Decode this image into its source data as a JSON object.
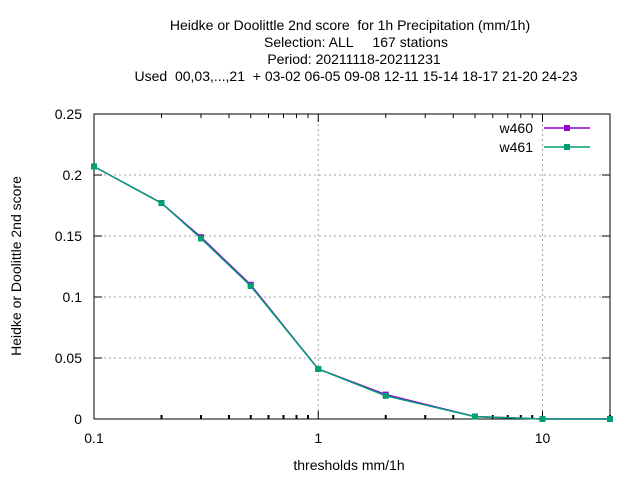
{
  "chart_data": {
    "type": "line",
    "title_lines": [
      "Heidke or Doolittle 2nd score  for 1h Precipitation (mm/1h)",
      "Selection: ALL     167 stations",
      "Period: 20211118-20211231",
      "Used  00,03,...,21  + 03-02 06-05 09-08 12-11 15-14 18-17 21-20 24-23"
    ],
    "xlabel": "thresholds mm/1h",
    "ylabel": "Heidke or Doolittle 2nd score",
    "xscale": "log",
    "xlim": [
      0.1,
      20
    ],
    "ylim": [
      0,
      0.25
    ],
    "x_ticks": [
      0.1,
      1,
      10
    ],
    "x_tick_labels": [
      "0.1",
      "1",
      "10"
    ],
    "y_ticks": [
      0,
      0.05,
      0.1,
      0.15,
      0.2,
      0.25
    ],
    "y_tick_labels": [
      "0",
      "0.05",
      "0.1",
      "0.15",
      "0.2",
      "0.25"
    ],
    "grid": true,
    "legend_position": "top-right",
    "x": [
      0.1,
      0.2,
      0.3,
      0.5,
      1,
      2,
      5,
      10,
      20
    ],
    "series": [
      {
        "name": "w460",
        "color": "#9400d3",
        "values": [
          0.207,
          0.177,
          0.149,
          0.11,
          0.041,
          0.02,
          0.002,
          0.0,
          0.0
        ]
      },
      {
        "name": "w461",
        "color": "#009e73",
        "values": [
          0.207,
          0.177,
          0.148,
          0.109,
          0.041,
          0.019,
          0.002,
          0.0,
          0.0
        ]
      }
    ]
  }
}
